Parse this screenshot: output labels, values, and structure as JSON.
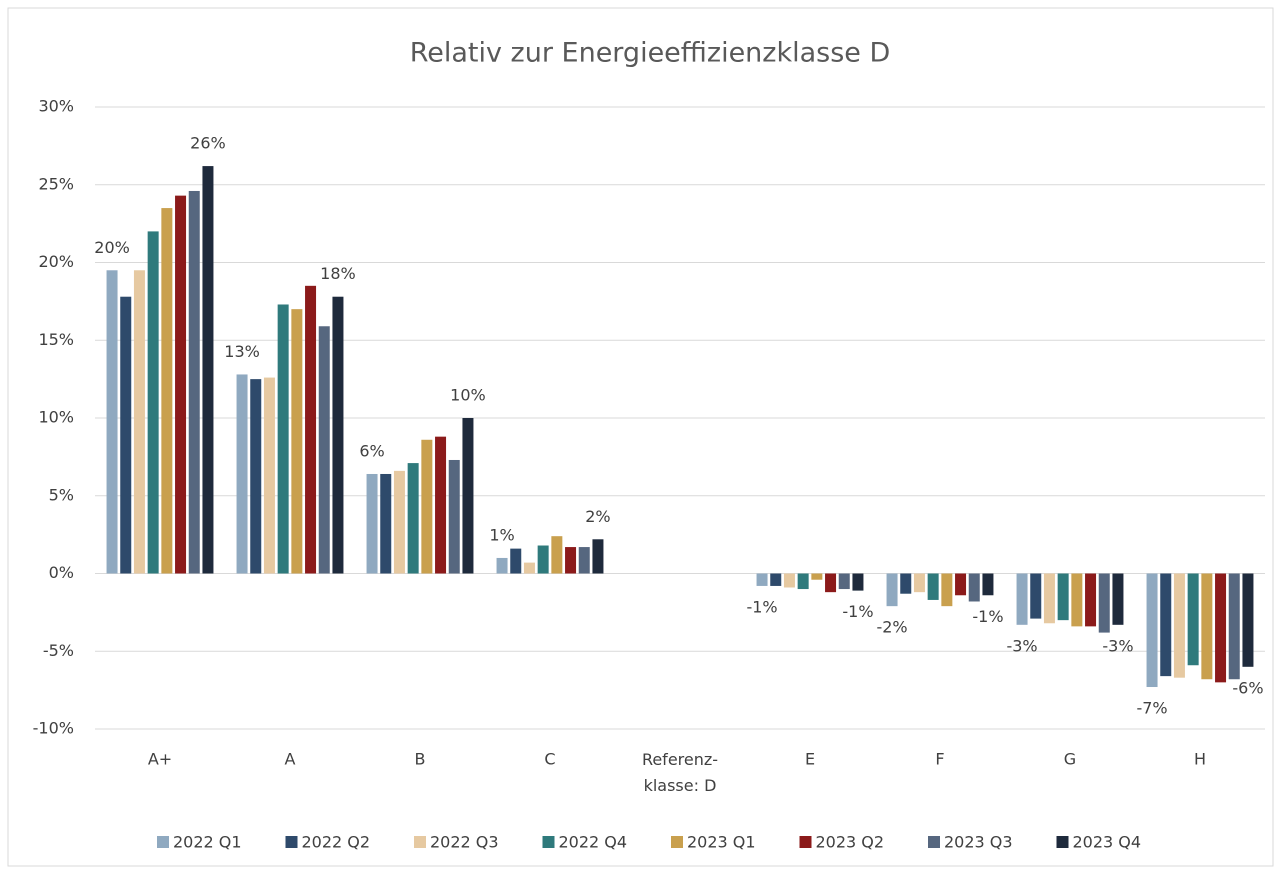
{
  "chart_data": {
    "type": "bar",
    "title": "Relativ zur Energieeffizienzklasse D",
    "categories": [
      "A+",
      "A",
      "B",
      "C",
      "Referenz-\nklasse: D",
      "E",
      "F",
      "G",
      "H"
    ],
    "series": [
      {
        "name": "2022 Q1",
        "color": "#8fa9c0",
        "values": [
          19.5,
          12.8,
          6.4,
          1.0,
          null,
          -0.8,
          -2.1,
          -3.3,
          -7.3
        ],
        "value_labels": [
          "20%",
          "13%",
          "6%",
          "1%",
          null,
          "-1%",
          "-2%",
          "-3%",
          "-7%"
        ]
      },
      {
        "name": "2022 Q2",
        "color": "#2e4a6b",
        "values": [
          17.8,
          12.5,
          6.4,
          1.6,
          null,
          -0.8,
          -1.3,
          -2.9,
          -6.6
        ]
      },
      {
        "name": "2022 Q3",
        "color": "#e6c9a1",
        "values": [
          19.5,
          12.6,
          6.6,
          0.7,
          null,
          -0.9,
          -1.2,
          -3.2,
          -6.7
        ]
      },
      {
        "name": "2022 Q4",
        "color": "#2f7a7c",
        "values": [
          22.0,
          17.3,
          7.1,
          1.8,
          null,
          -1.0,
          -1.7,
          -3.0,
          -5.9
        ]
      },
      {
        "name": "2023 Q1",
        "color": "#c9a04e",
        "values": [
          23.5,
          17.0,
          8.6,
          2.4,
          null,
          -0.4,
          -2.1,
          -3.4,
          -6.8
        ]
      },
      {
        "name": "2023 Q2",
        "color": "#8b1a1a",
        "values": [
          24.3,
          18.5,
          8.8,
          1.7,
          null,
          -1.2,
          -1.4,
          -3.4,
          -7.0
        ]
      },
      {
        "name": "2023 Q3",
        "color": "#56677f",
        "values": [
          24.6,
          15.9,
          7.3,
          1.7,
          null,
          -1.0,
          -1.8,
          -3.8,
          -6.8
        ]
      },
      {
        "name": "2023 Q4",
        "color": "#1e2a3c",
        "values": [
          26.2,
          17.8,
          10.0,
          2.2,
          null,
          -1.1,
          -1.4,
          -3.3,
          -6.0
        ],
        "value_labels": [
          "26%",
          "18%",
          "10%",
          "2%",
          null,
          "-1%",
          "-1%",
          "-3%",
          "-6%"
        ]
      }
    ],
    "ylim": [
      -10,
      30
    ],
    "yticks": [
      {
        "value": -10,
        "label": "-10%"
      },
      {
        "value": -5,
        "label": "-5%"
      },
      {
        "value": 0,
        "label": "0%"
      },
      {
        "value": 5,
        "label": "5%"
      },
      {
        "value": 10,
        "label": "10%"
      },
      {
        "value": 15,
        "label": "15%"
      },
      {
        "value": 20,
        "label": "20%"
      },
      {
        "value": 25,
        "label": "25%"
      },
      {
        "value": 30,
        "label": "30%"
      }
    ],
    "grid": true,
    "legend": "bottom"
  }
}
